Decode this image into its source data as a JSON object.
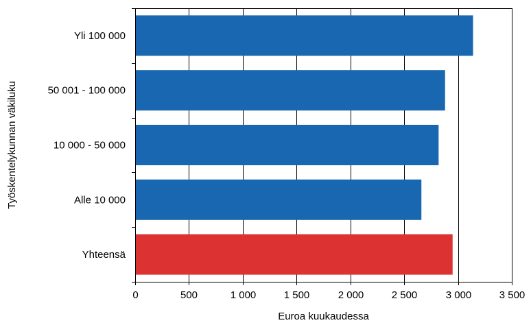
{
  "chart_data": {
    "type": "bar",
    "orientation": "horizontal",
    "categories": [
      "Yli 100 000",
      "50 001 - 100 000",
      "10 000 - 50 000",
      "Alle 10 000",
      "Yhteensä"
    ],
    "values": [
      3140,
      2880,
      2820,
      2660,
      2950
    ],
    "bar_colors": [
      "#1a67b1",
      "#1a67b1",
      "#1a67b1",
      "#1a67b1",
      "#dc3232"
    ],
    "xticks": [
      0,
      500,
      1000,
      1500,
      2000,
      2500,
      3000,
      3500
    ],
    "xtick_labels": [
      "0",
      "500",
      "1 000",
      "1 500",
      "2 000",
      "2 500",
      "3 000",
      "3 500"
    ],
    "xlim": [
      0,
      3500
    ],
    "xlabel": "Euroa kuukaudessa",
    "ylabel": "Työskentelykunnan väkiluku",
    "grid": "vertical",
    "legend": "none"
  }
}
